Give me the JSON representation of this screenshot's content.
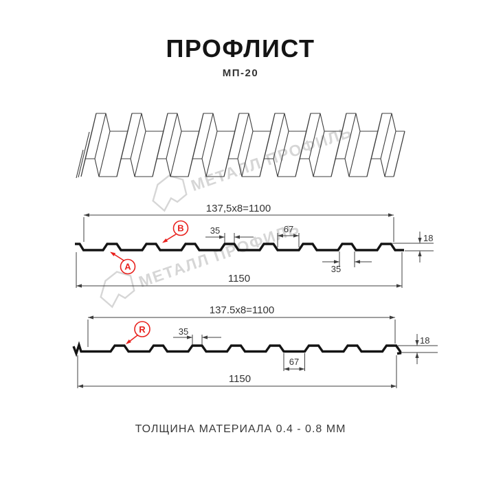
{
  "title": "ПРОФЛИСТ",
  "subtitle": "МП-20",
  "footer_note": "ТОЛЩИНА МАТЕРИАЛА 0.4 - 0.8 ММ",
  "watermark": {
    "brand": "МЕТАЛЛ ПРОФИЛЬ",
    "color": "#d2d2d2"
  },
  "colors": {
    "red": "#e8211d",
    "line": "#3f3f3f",
    "profile": "#141414"
  },
  "section_a": {
    "coverage_width": "137,5x8=1100",
    "full_width": "1150",
    "rib_top": "35",
    "rib_bottom": "67",
    "height": "18",
    "edge_rib": "35",
    "label_a": "A",
    "label_b": "B"
  },
  "section_r": {
    "coverage_width": "137.5x8=1100",
    "full_width": "1150",
    "rib_top": "35",
    "rib_bottom": "67",
    "height": "18",
    "label_r": "R"
  }
}
